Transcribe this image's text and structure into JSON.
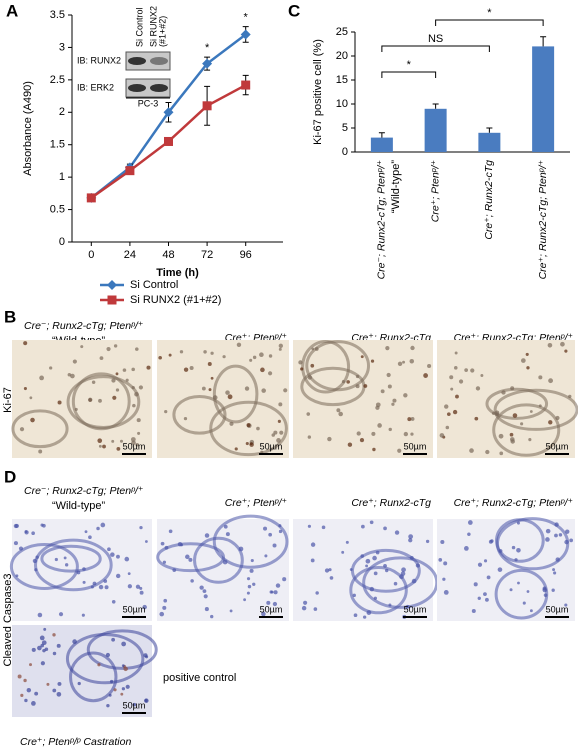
{
  "chart_data": [
    {
      "type": "line",
      "letter": "A",
      "x_label": "Time (h)",
      "y_label": "Absorbance (A490)",
      "x": [
        0,
        24,
        48,
        72,
        96
      ],
      "xlim": [
        -12,
        108
      ],
      "xticks": [
        0,
        24,
        48,
        72,
        96
      ],
      "ylim": [
        0,
        3.5
      ],
      "yticks": [
        0,
        0.5,
        1,
        1.5,
        2,
        2.5,
        3,
        3.5
      ],
      "series": [
        {
          "name": "Si Control",
          "color": "#3b78bd",
          "marker": "diamond",
          "values": [
            0.68,
            1.15,
            2.0,
            2.75,
            3.2
          ],
          "errors": [
            0.05,
            0.05,
            0.15,
            0.1,
            0.12
          ]
        },
        {
          "name": "Si RUNX2 (#1+#2)",
          "color": "#c0393b",
          "marker": "square",
          "values": [
            0.68,
            1.1,
            1.55,
            2.1,
            2.42
          ],
          "errors": [
            0.05,
            0.05,
            0.05,
            0.3,
            0.15
          ]
        }
      ],
      "annotations": [
        {
          "text": "*",
          "x": 48
        },
        {
          "text": "*",
          "x": 72
        },
        {
          "text": "*",
          "x": 96
        }
      ],
      "inset": {
        "lanes": [
          [
            "Si Control"
          ],
          [
            "Si RUNX2",
            "(#1+#2)"
          ]
        ],
        "rows": [
          "IB: RUNX2",
          "IB: ERK2"
        ],
        "cell_line": "PC-3"
      }
    },
    {
      "type": "bar",
      "letter": "C",
      "y_label": "Ki-67 positive cell (%)",
      "categories": [
        "Cre⁻; Runx2-cTg; Ptenᵖ/⁺",
        "Cre⁺; Ptenᵖ/⁺",
        "Cre⁺; Runx2-cTg",
        "Cre⁺; Runx2-cTg; Ptenᵖ/⁺"
      ],
      "category_note": "“Wild-type”",
      "values": [
        3.0,
        9.0,
        4.0,
        22.0
      ],
      "errors": [
        1.0,
        1.0,
        1.0,
        2.0
      ],
      "color": "#4a7cc0",
      "ylim": [
        0,
        25
      ],
      "yticks": [
        0,
        5,
        10,
        15,
        20,
        25
      ],
      "annotations": [
        {
          "text": "*",
          "from": 0,
          "to": 1
        },
        {
          "text": "NS",
          "from": 0,
          "to": 2
        },
        {
          "text": "*",
          "from": 1,
          "to": 3
        }
      ]
    }
  ],
  "panels": {
    "B": {
      "letter": "B",
      "row_label": "Ki-67",
      "headers": [
        "Cre⁻; Runx2-cTg; Ptenᵖ/⁺",
        "Cre⁺; Ptenᵖ/⁺",
        "Cre⁺; Runx2-cTg",
        "Cre⁺; Runx2-cTg; Ptenᵖ/⁺"
      ],
      "note": "“Wild-type”",
      "scale_bars": [
        "50µm",
        "50µm",
        "50µm",
        "50µm"
      ]
    },
    "D": {
      "letter": "D",
      "row_label": "Cleaved Caspase3",
      "headers": [
        "Cre⁻; Runx2-cTg; Ptenᵖ/⁺",
        "Cre⁺; Ptenᵖ/⁺",
        "Cre⁺; Runx2-cTg",
        "Cre⁺; Runx2-cTg; Ptenᵖ/⁺"
      ],
      "note": "“Wild-type”",
      "scale_bars": [
        "50µm",
        "50µm",
        "50µm",
        "50µm",
        "50µm"
      ],
      "control_label": "positive control",
      "control_caption": "Cre⁺; Ptenᵖ/ᵖ Castration"
    }
  }
}
